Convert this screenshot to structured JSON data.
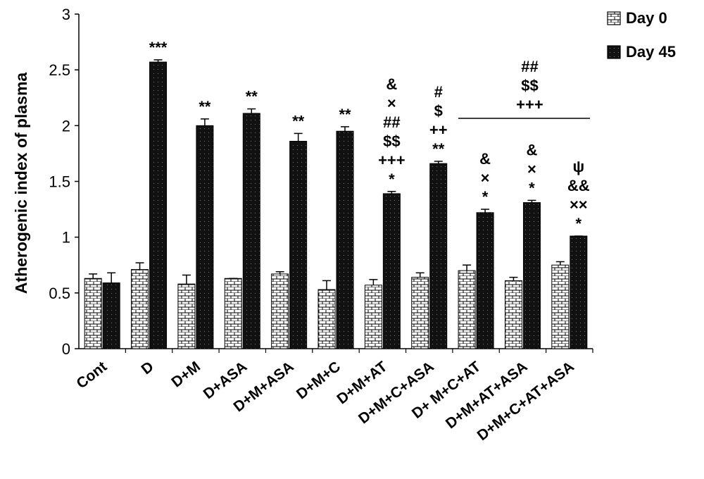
{
  "chart_data": {
    "type": "bar",
    "title": "",
    "xlabel": "",
    "ylabel": "Atherogenic index of plasma",
    "ylim": [
      0,
      3
    ],
    "yticks": [
      "0",
      "0.5",
      "1",
      "1.5",
      "2",
      "2.5",
      "3"
    ],
    "categories": [
      "Cont",
      "D",
      "D+M",
      "D+ASA",
      "D+M+ASA",
      "D+M+C",
      "D+M+AT",
      "D+M+C+ASA",
      "D+ M+C+AT",
      "D+M+AT+ASA",
      "D+M+C+AT+ASA"
    ],
    "series": [
      {
        "name": "Day 0",
        "pattern": "brick",
        "color": "#ffffff",
        "values": [
          0.63,
          0.71,
          0.58,
          0.63,
          0.67,
          0.53,
          0.57,
          0.64,
          0.7,
          0.61,
          0.75
        ],
        "errors": [
          0.04,
          0.06,
          0.08,
          0.0,
          0.02,
          0.08,
          0.05,
          0.04,
          0.05,
          0.03,
          0.03
        ]
      },
      {
        "name": "Day 45",
        "pattern": "dotted-black",
        "color": "#111111",
        "values": [
          0.59,
          2.57,
          2.0,
          2.11,
          1.86,
          1.95,
          1.39,
          1.66,
          1.22,
          1.31,
          1.01
        ],
        "errors": [
          0.09,
          0.02,
          0.06,
          0.04,
          0.07,
          0.04,
          0.02,
          0.02,
          0.03,
          0.02,
          0.0
        ]
      }
    ],
    "annotations": [
      {
        "category_index": 1,
        "lines": [
          "***"
        ]
      },
      {
        "category_index": 2,
        "lines": [
          "**"
        ]
      },
      {
        "category_index": 3,
        "lines": [
          "**"
        ]
      },
      {
        "category_index": 4,
        "lines": [
          "**"
        ]
      },
      {
        "category_index": 5,
        "lines": [
          "**"
        ]
      },
      {
        "category_index": 6,
        "lines": [
          "&",
          "×",
          "##",
          "$$",
          "+++",
          "*"
        ]
      },
      {
        "category_index": 7,
        "lines": [
          "#",
          "$",
          "++",
          "**"
        ]
      },
      {
        "category_index": 8,
        "lines": [
          "&",
          "×",
          "*"
        ]
      },
      {
        "category_index": 9,
        "lines": [
          "&",
          "×",
          "*"
        ]
      },
      {
        "category_index": 10,
        "lines": [
          "ψ",
          "&&",
          "××",
          "*"
        ]
      }
    ],
    "group_annotation": {
      "from_index": 8,
      "to_index": 10,
      "lines": [
        "##",
        "$$",
        "+++"
      ]
    },
    "legend": {
      "placement": "top-right",
      "entries": [
        "Day 0",
        "Day 45"
      ]
    },
    "grid": false
  }
}
